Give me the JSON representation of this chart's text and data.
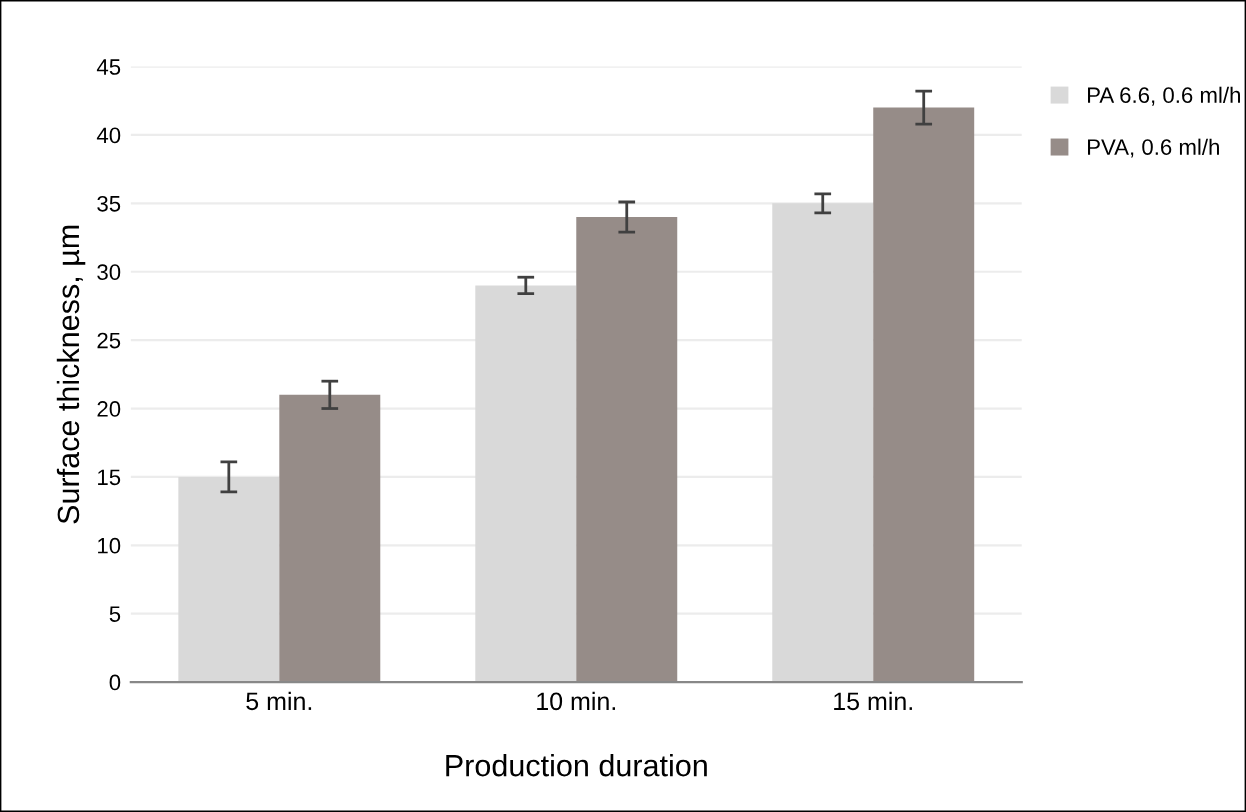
{
  "chart_data": {
    "type": "bar",
    "xlabel": "Production duration",
    "ylabel": "Surface thickness, µm",
    "categories": [
      "5 min.",
      "10 min.",
      "15 min."
    ],
    "series": [
      {
        "name": "PA 6.6, 0.6 ml/h",
        "color": "#d9d9d9",
        "values": [
          15,
          29,
          35
        ],
        "errors": [
          1.1,
          0.6,
          0.7
        ]
      },
      {
        "name": "PVA, 0.6 ml/h",
        "color": "#968c88",
        "values": [
          21,
          34,
          42
        ],
        "errors": [
          1.0,
          1.1,
          1.2
        ]
      }
    ],
    "ylim": [
      0,
      45
    ],
    "yticks": [
      0,
      5,
      10,
      15,
      20,
      25,
      30,
      35,
      40,
      45
    ],
    "grid": "y",
    "legend": "top right"
  }
}
